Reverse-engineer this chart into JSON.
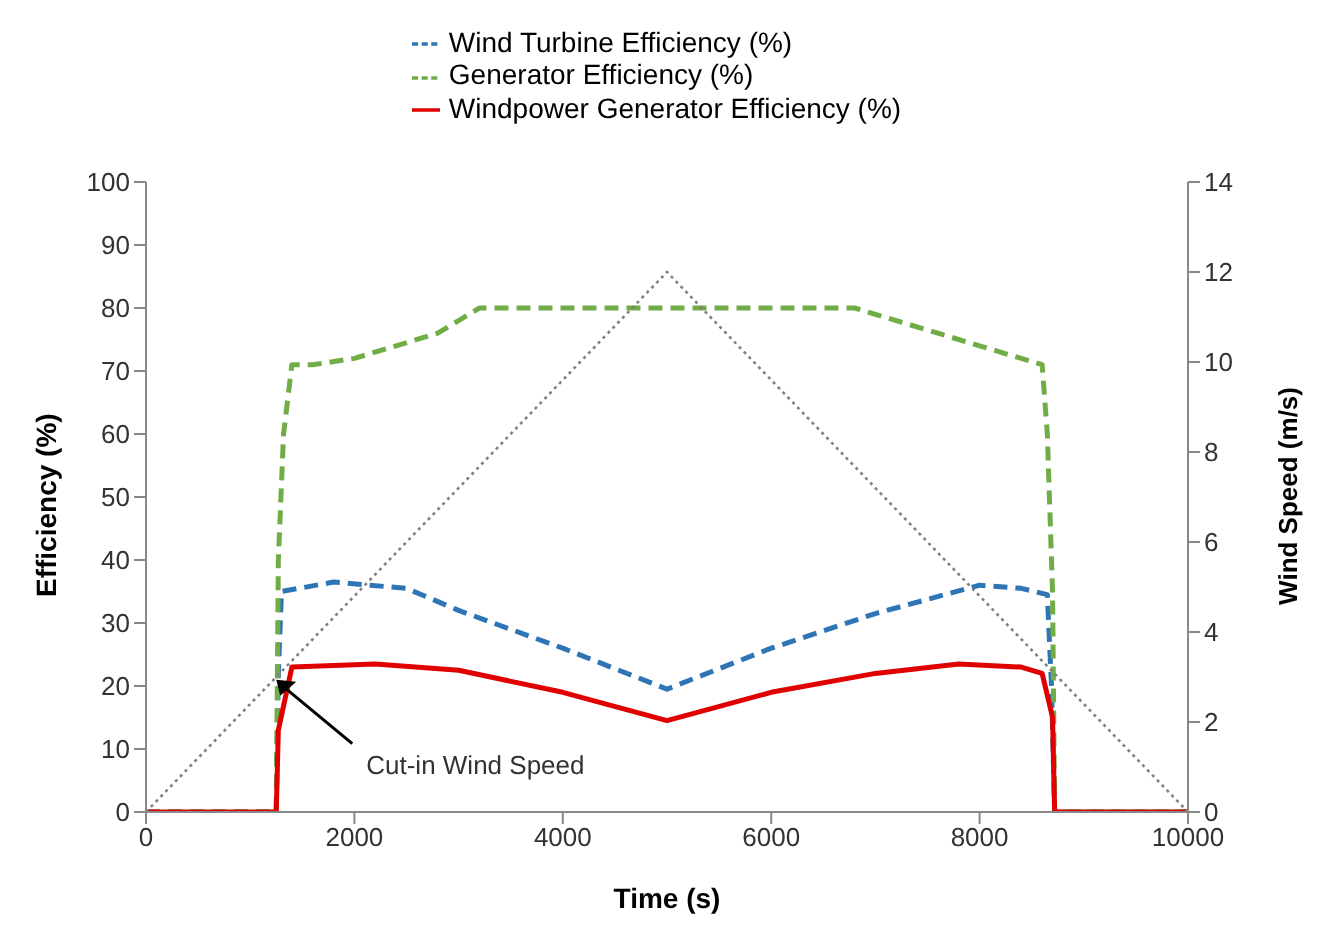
{
  "chart_data": {
    "type": "line",
    "xlabel": "Time (s)",
    "ylabel": "Efficiency (%)",
    "y2label": "Wind Speed (m/s)",
    "xlim": [
      0,
      10000
    ],
    "xticks": [
      0,
      2000,
      4000,
      6000,
      8000,
      10000
    ],
    "ylim": [
      0,
      100
    ],
    "yticks": [
      0,
      10,
      20,
      30,
      40,
      50,
      60,
      70,
      80,
      90,
      100
    ],
    "y2lim": [
      0,
      14
    ],
    "y2ticks": [
      0,
      2,
      4,
      6,
      8,
      10,
      12,
      14
    ],
    "grid": false,
    "legend": "top",
    "marker": "none",
    "annotations": [
      {
        "text": "Cut-in Wind Speed",
        "x": 1250,
        "y": 21
      }
    ],
    "series": [
      {
        "name": "Wind Turbine Efficiency (%)",
        "color": "#2e75b6",
        "line_style": "dashed",
        "x": [
          0,
          1250,
          1270,
          1300,
          1800,
          2500,
          3000,
          4000,
          5000,
          6000,
          7000,
          8000,
          8400,
          8650,
          8690,
          8720,
          10000
        ],
        "values": [
          0,
          0,
          22,
          35,
          36.5,
          35.5,
          32,
          26,
          19.5,
          26,
          31.5,
          36,
          35.5,
          34.5,
          20,
          0,
          0
        ]
      },
      {
        "name": "Generator Efficiency (%)",
        "color": "#70ad47",
        "line_style": "dashed",
        "x": [
          0,
          1250,
          1270,
          1320,
          1400,
          1600,
          2000,
          2400,
          2800,
          3000,
          3200,
          6800,
          7200,
          7600,
          8000,
          8400,
          8600,
          8650,
          8700,
          8720,
          10000
        ],
        "values": [
          0,
          0,
          40,
          60,
          71,
          71,
          72,
          74,
          76,
          78,
          80,
          80,
          78,
          76,
          74,
          72,
          71,
          60,
          35,
          0,
          0
        ]
      },
      {
        "name": "Windpower Generator Efficiency (%)",
        "color": "#e00000",
        "line_style": "solid",
        "x": [
          0,
          1250,
          1270,
          1400,
          2200,
          3000,
          4000,
          5000,
          6000,
          7000,
          7800,
          8400,
          8600,
          8700,
          8720,
          10000
        ],
        "values": [
          0,
          0,
          13,
          23,
          23.5,
          22.5,
          19,
          14.5,
          19,
          22,
          23.5,
          23,
          22,
          15,
          0,
          0
        ]
      },
      {
        "color": "#808080",
        "line_style": "dotted",
        "axis": "y2",
        "x": [
          0,
          5000,
          10000
        ],
        "values": [
          0,
          12,
          0
        ]
      }
    ]
  }
}
